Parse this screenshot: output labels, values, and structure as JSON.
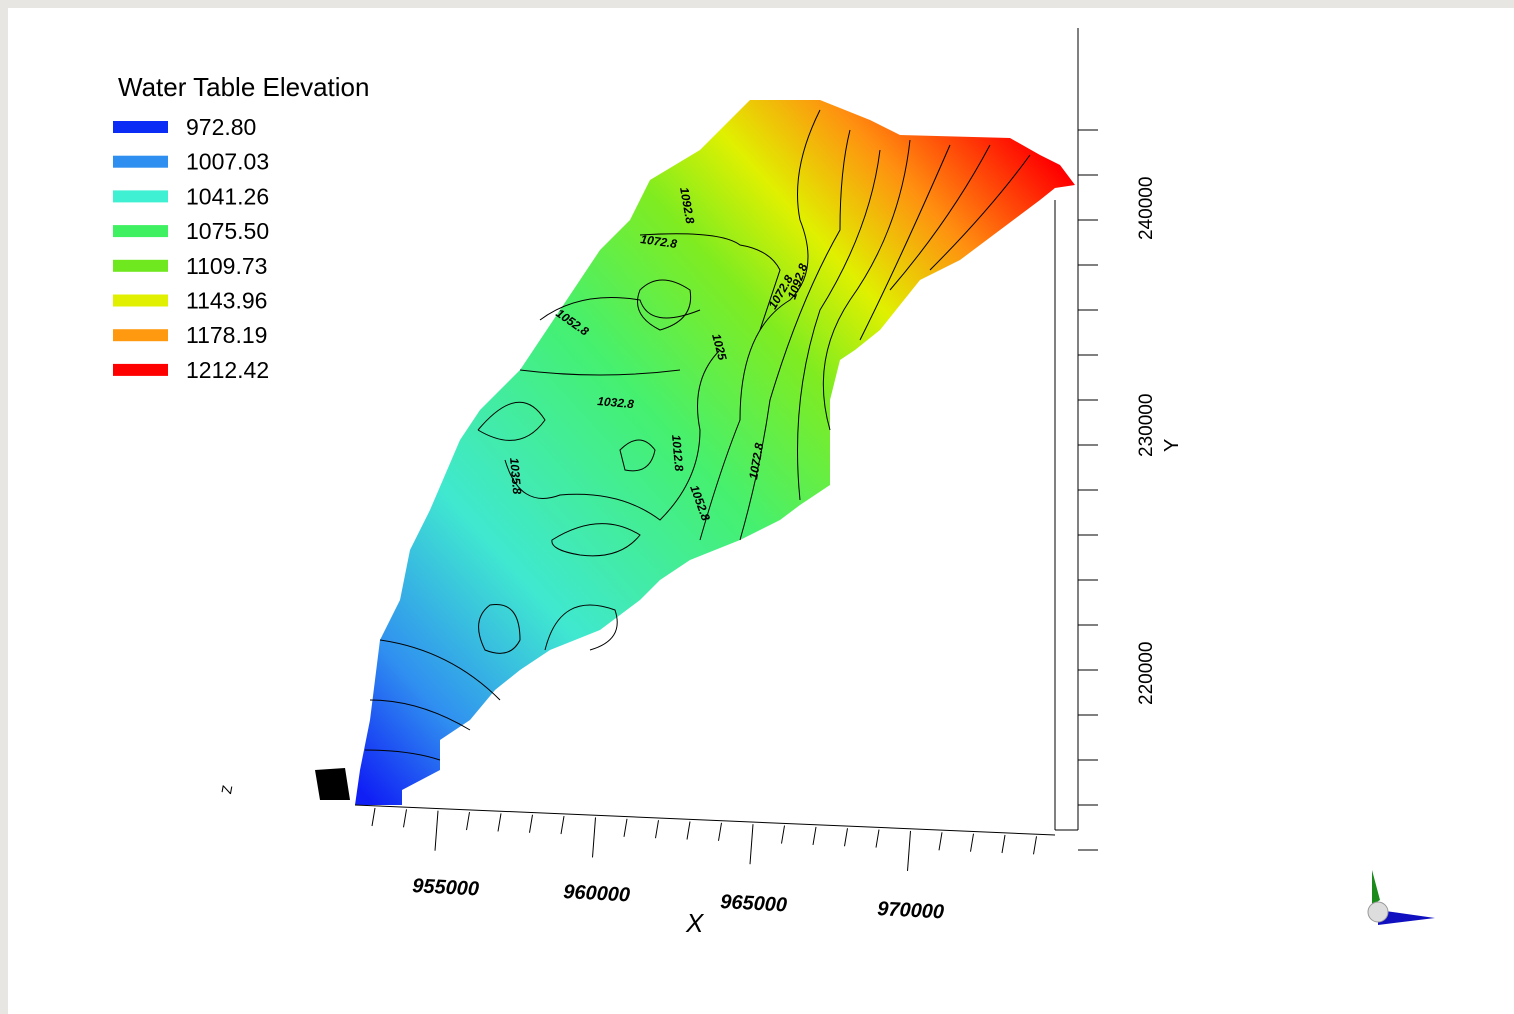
{
  "legend": {
    "title": "Water Table Elevation",
    "entries": [
      {
        "label": "972.80",
        "color": "#0a2cf5"
      },
      {
        "label": "1007.03",
        "color": "#2f8ff0"
      },
      {
        "label": "1041.26",
        "color": "#3ff0d2"
      },
      {
        "label": "1075.50",
        "color": "#3ff060"
      },
      {
        "label": "1109.73",
        "color": "#70e820"
      },
      {
        "label": "1143.96",
        "color": "#e0f000"
      },
      {
        "label": "1178.19",
        "color": "#ff9a10"
      },
      {
        "label": "1212.42",
        "color": "#ff0000"
      }
    ]
  },
  "x_axis": {
    "title": "X",
    "ticks": [
      "955000",
      "960000",
      "965000",
      "970000"
    ]
  },
  "y_axis": {
    "title": "Y",
    "ticks": [
      "220000",
      "230000",
      "240000"
    ]
  },
  "z_axis": {
    "title": "Z"
  },
  "contour_labels": [
    "1092.8",
    "1072.8",
    "1052.8",
    "1032.8",
    "1025",
    "1072.8",
    "1092.8",
    "1035.8",
    "1012.8",
    "1052.8",
    "1072.8"
  ]
}
